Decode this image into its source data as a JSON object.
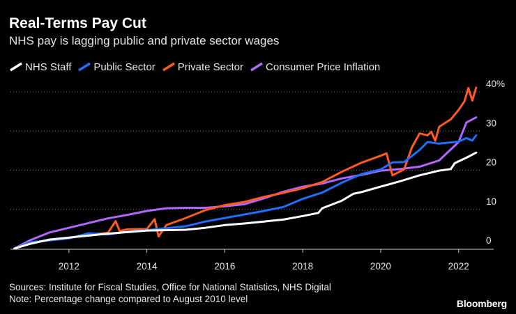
{
  "header": {
    "title": "Real-Terms Pay Cut",
    "subtitle": "NHS pay is lagging public and private sector wages"
  },
  "footer": {
    "sources": "Sources: Institute for Fiscal Studies, Office for National Statistics, NHS Digital",
    "note": "Note: Percentage change compared to August 2010 level"
  },
  "brand": "Bloomberg",
  "chart_data": {
    "type": "line",
    "title": "Real-Terms Pay Cut",
    "subtitle": "NHS pay is lagging public and private sector wages",
    "xlabel": "",
    "ylabel": "",
    "xlim": [
      2010.5,
      2022.9
    ],
    "ylim": [
      0,
      40
    ],
    "x_ticks": [
      2012,
      2014,
      2016,
      2018,
      2020,
      2022
    ],
    "y_ticks": [
      0,
      10,
      20,
      30,
      40
    ],
    "y_tick_labels": [
      "0",
      "10",
      "20",
      "30",
      "40%"
    ],
    "grid": "horizontal dotted",
    "legend_position": "top-left",
    "series": [
      {
        "name": "NHS Staff",
        "color": "#ffffff",
        "points": [
          [
            2010.6,
            0
          ],
          [
            2011,
            1.2
          ],
          [
            2011.5,
            2.3
          ],
          [
            2012,
            2.8
          ],
          [
            2012.5,
            3.3
          ],
          [
            2013,
            3.8
          ],
          [
            2013.5,
            4.2
          ],
          [
            2014,
            4.6
          ],
          [
            2014.5,
            4.7
          ],
          [
            2015,
            4.8
          ],
          [
            2015.5,
            5.3
          ],
          [
            2016,
            6.0
          ],
          [
            2016.5,
            6.4
          ],
          [
            2017,
            6.9
          ],
          [
            2017.5,
            7.4
          ],
          [
            2018,
            8.3
          ],
          [
            2018.4,
            9.1
          ],
          [
            2018.5,
            10.3
          ],
          [
            2019,
            12.2
          ],
          [
            2019.3,
            14.0
          ],
          [
            2019.5,
            14.4
          ],
          [
            2020,
            15.8
          ],
          [
            2020.5,
            17.2
          ],
          [
            2021,
            18.7
          ],
          [
            2021.5,
            19.9
          ],
          [
            2021.8,
            20.3
          ],
          [
            2021.9,
            21.8
          ],
          [
            2022.2,
            23.2
          ],
          [
            2022.45,
            24.5
          ]
        ]
      },
      {
        "name": "Public Sector",
        "color": "#1f6fff",
        "points": [
          [
            2010.6,
            0
          ],
          [
            2011,
            1.6
          ],
          [
            2011.5,
            2.1
          ],
          [
            2012,
            2.6
          ],
          [
            2012.5,
            3.9
          ],
          [
            2013,
            3.6
          ],
          [
            2013.5,
            4.3
          ],
          [
            2014,
            4.7
          ],
          [
            2014.5,
            5.2
          ],
          [
            2015,
            5.7
          ],
          [
            2015.5,
            6.9
          ],
          [
            2016,
            7.8
          ],
          [
            2016.5,
            8.7
          ],
          [
            2017,
            9.6
          ],
          [
            2017.5,
            10.6
          ],
          [
            2018,
            12.7
          ],
          [
            2018.5,
            14.3
          ],
          [
            2019,
            16.8
          ],
          [
            2019.5,
            19.0
          ],
          [
            2020,
            20.2
          ],
          [
            2020.3,
            22.0
          ],
          [
            2020.6,
            22.1
          ],
          [
            2021,
            25.2
          ],
          [
            2021.2,
            27.2
          ],
          [
            2021.5,
            26.8
          ],
          [
            2022,
            27.3
          ],
          [
            2022.2,
            28.2
          ],
          [
            2022.35,
            27.6
          ],
          [
            2022.45,
            28.9
          ]
        ]
      },
      {
        "name": "Private Sector",
        "color": "#ff5a1f",
        "points": [
          [
            2010.6,
            0
          ],
          [
            2011,
            1.4
          ],
          [
            2011.5,
            2.2
          ],
          [
            2012,
            2.7
          ],
          [
            2012.5,
            3.6
          ],
          [
            2013,
            4.0
          ],
          [
            2013.2,
            7.0
          ],
          [
            2013.3,
            4.5
          ],
          [
            2013.5,
            4.9
          ],
          [
            2014,
            5.0
          ],
          [
            2014.2,
            7.5
          ],
          [
            2014.3,
            3.1
          ],
          [
            2014.5,
            6.0
          ],
          [
            2015,
            7.8
          ],
          [
            2015.5,
            9.8
          ],
          [
            2016,
            11.1
          ],
          [
            2016.5,
            11.9
          ],
          [
            2017,
            13.2
          ],
          [
            2017.5,
            14.2
          ],
          [
            2018,
            15.4
          ],
          [
            2018.5,
            17.0
          ],
          [
            2019,
            19.6
          ],
          [
            2019.5,
            21.9
          ],
          [
            2020,
            23.7
          ],
          [
            2020.15,
            24.3
          ],
          [
            2020.3,
            18.7
          ],
          [
            2020.6,
            20.2
          ],
          [
            2020.8,
            25.8
          ],
          [
            2021,
            29.4
          ],
          [
            2021.2,
            28.9
          ],
          [
            2021.3,
            29.8
          ],
          [
            2021.4,
            27.5
          ],
          [
            2021.5,
            31.1
          ],
          [
            2021.8,
            33.0
          ],
          [
            2022,
            35.4
          ],
          [
            2022.15,
            37.6
          ],
          [
            2022.25,
            41.0
          ],
          [
            2022.35,
            37.8
          ],
          [
            2022.45,
            41.1
          ]
        ]
      },
      {
        "name": "Consumer Price Inflation",
        "color": "#b266ff",
        "points": [
          [
            2010.6,
            0
          ],
          [
            2011,
            2.1
          ],
          [
            2011.5,
            4.1
          ],
          [
            2012,
            5.3
          ],
          [
            2012.5,
            6.5
          ],
          [
            2013,
            7.7
          ],
          [
            2013.5,
            8.6
          ],
          [
            2014,
            9.6
          ],
          [
            2014.5,
            10.3
          ],
          [
            2015,
            10.4
          ],
          [
            2015.5,
            10.4
          ],
          [
            2016,
            10.8
          ],
          [
            2016.5,
            11.3
          ],
          [
            2017,
            12.8
          ],
          [
            2017.5,
            14.5
          ],
          [
            2018,
            15.8
          ],
          [
            2018.5,
            16.6
          ],
          [
            2019,
            17.9
          ],
          [
            2019.5,
            18.8
          ],
          [
            2020,
            19.9
          ],
          [
            2020.5,
            20.3
          ],
          [
            2021,
            20.9
          ],
          [
            2021.5,
            22.5
          ],
          [
            2022,
            27.2
          ],
          [
            2022.2,
            32.2
          ],
          [
            2022.45,
            33.5
          ]
        ]
      }
    ]
  }
}
